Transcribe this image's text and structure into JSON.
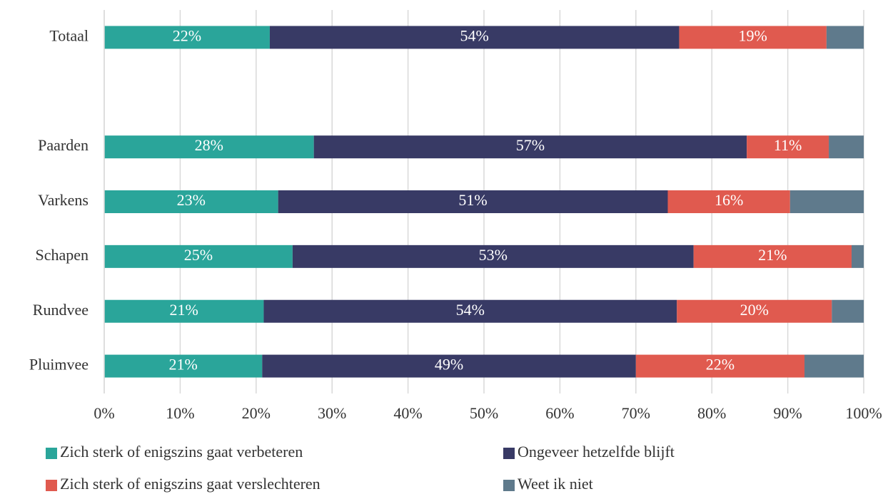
{
  "chart_data": {
    "type": "stacked-bar-horizontal",
    "categories": [
      "Totaal",
      null,
      "Paarden",
      "Varkens",
      "Schapen",
      "Rundvee",
      "Pluimvee"
    ],
    "series": [
      {
        "name": "Zich sterk of enigszins gaat verbeteren",
        "color": "#2aa59a",
        "values": [
          21.8,
          null,
          27.6,
          22.9,
          24.8,
          21.0,
          20.8
        ],
        "value_labels": [
          "22%",
          null,
          "28%",
          "23%",
          "25%",
          "21%",
          "21%"
        ]
      },
      {
        "name": "Ongeveer hetzelfde blijft",
        "color": "#383a65",
        "values": [
          53.9,
          null,
          57.0,
          51.3,
          52.8,
          54.4,
          49.2
        ],
        "value_labels": [
          "54%",
          null,
          "57%",
          "51%",
          "53%",
          "54%",
          "49%"
        ]
      },
      {
        "name": "Zich sterk of enigszins gaat verslechteren",
        "color": "#e05a4f",
        "values": [
          19.4,
          null,
          10.8,
          16.1,
          20.8,
          20.4,
          22.2
        ],
        "value_labels": [
          "19%",
          null,
          "11%",
          "16%",
          "21%",
          "20%",
          "22%"
        ]
      },
      {
        "name": "Weet ik niet",
        "color": "#5f7a8c",
        "values": [
          4.9,
          null,
          4.6,
          9.7,
          1.6,
          4.2,
          7.8
        ]
      }
    ],
    "xlim": [
      0,
      100
    ],
    "xticks": [
      {
        "value": 0,
        "label": "0%"
      },
      {
        "value": 10,
        "label": "10%"
      },
      {
        "value": 20,
        "label": "20%"
      },
      {
        "value": 30,
        "label": "30%"
      },
      {
        "value": 40,
        "label": "40%"
      },
      {
        "value": 50,
        "label": "50%"
      },
      {
        "value": 60,
        "label": "60%"
      },
      {
        "value": 70,
        "label": "70%"
      },
      {
        "value": 80,
        "label": "80%"
      },
      {
        "value": 90,
        "label": "90%"
      },
      {
        "value": 100,
        "label": "100%"
      }
    ],
    "grid": true
  }
}
